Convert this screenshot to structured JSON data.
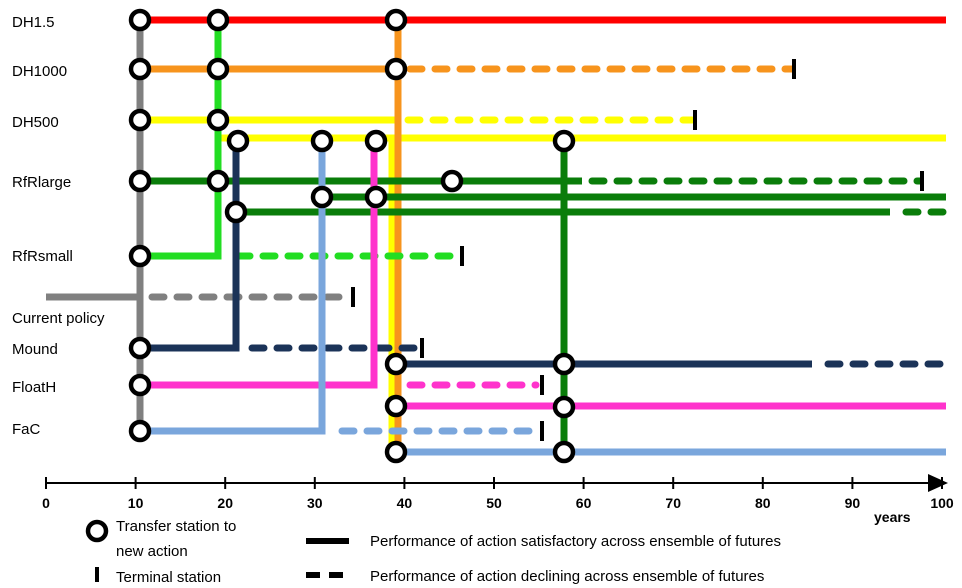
{
  "colors": {
    "dh15": "#ff0000",
    "dh1000": "#f7941d",
    "dh500": "#ffff00",
    "green_dark": "#0a7d0a",
    "green_light": "#22dd22",
    "gray": "#808080",
    "navy": "#1b3358",
    "pink": "#ff33cc",
    "lightblue": "#7aa6dc"
  },
  "actions": [
    "DH1.5",
    "DH1000",
    "DH500",
    "RfRlarge",
    "RfRsmall",
    "Current policy",
    "Mound",
    "FloatH",
    "FaC"
  ],
  "axis": {
    "ticks": [
      "0",
      "10",
      "20",
      "30",
      "40",
      "50",
      "60",
      "70",
      "80",
      "90",
      "100"
    ],
    "unit_label": "years",
    "range": [
      0,
      100
    ]
  },
  "legend": {
    "transfer_station": "Transfer station to",
    "transfer_station_line2": "new action",
    "terminal_station": "Terminal station",
    "solid_line": "Performance of action satisfactory across ensemble of futures",
    "dashed_line": "Performance of action declining across ensemble of futures"
  }
}
